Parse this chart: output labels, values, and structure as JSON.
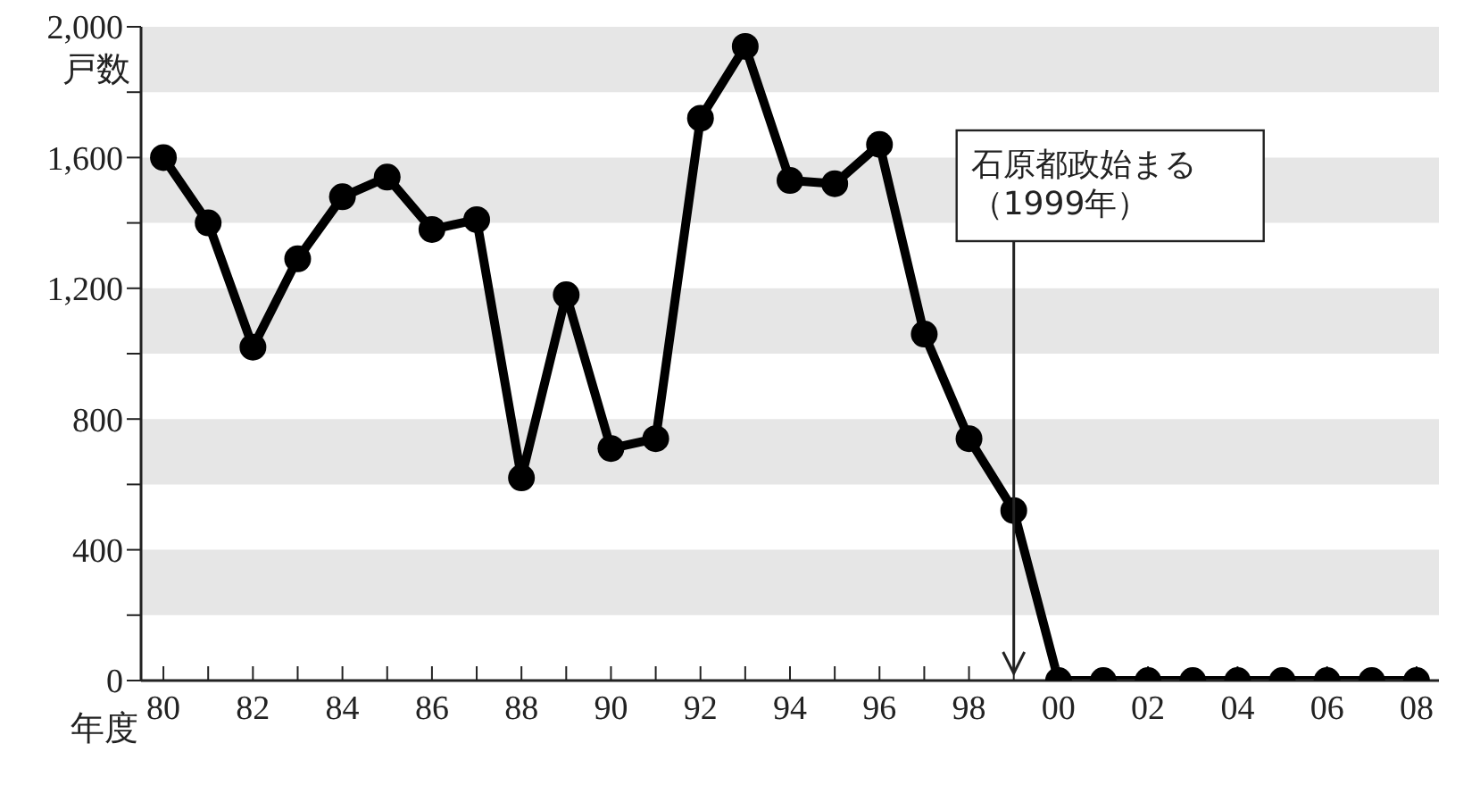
{
  "chart_data": {
    "type": "line",
    "xlabel": "年度",
    "ylabel": "戸数",
    "x": [
      1980,
      1981,
      1982,
      1983,
      1984,
      1985,
      1986,
      1987,
      1988,
      1989,
      1990,
      1991,
      1992,
      1993,
      1994,
      1995,
      1996,
      1997,
      1998,
      1999,
      2000,
      2001,
      2002,
      2003,
      2004,
      2005,
      2006,
      2007,
      2008
    ],
    "series": [
      {
        "color": "#000000",
        "values": [
          1600,
          1400,
          1020,
          1290,
          1480,
          1540,
          1380,
          1410,
          620,
          1180,
          710,
          740,
          1720,
          1940,
          1530,
          1520,
          1640,
          1060,
          740,
          520,
          0,
          0,
          0,
          0,
          0,
          0,
          0,
          0,
          0
        ]
      }
    ],
    "xlim": [
      1979.5,
      2008.5
    ],
    "xticks": [
      {
        "value": 1980,
        "label": "80"
      },
      {
        "value": 1981,
        "label": null
      },
      {
        "value": 1982,
        "label": "82"
      },
      {
        "value": 1983,
        "label": null
      },
      {
        "value": 1984,
        "label": "84"
      },
      {
        "value": 1985,
        "label": null
      },
      {
        "value": 1986,
        "label": "86"
      },
      {
        "value": 1987,
        "label": null
      },
      {
        "value": 1988,
        "label": "88"
      },
      {
        "value": 1989,
        "label": null
      },
      {
        "value": 1990,
        "label": "90"
      },
      {
        "value": 1991,
        "label": null
      },
      {
        "value": 1992,
        "label": "92"
      },
      {
        "value": 1993,
        "label": null
      },
      {
        "value": 1994,
        "label": "94"
      },
      {
        "value": 1995,
        "label": null
      },
      {
        "value": 1996,
        "label": "96"
      },
      {
        "value": 1997,
        "label": null
      },
      {
        "value": 1998,
        "label": "98"
      },
      {
        "value": 1999,
        "label": null
      },
      {
        "value": 2000,
        "label": "00"
      },
      {
        "value": 2002,
        "label": "02"
      },
      {
        "value": 2004,
        "label": "04"
      },
      {
        "value": 2006,
        "label": "06"
      },
      {
        "value": 2008,
        "label": "08"
      }
    ],
    "ylim": [
      0,
      2000
    ],
    "yticks": [
      0,
      {
        "value": 200,
        "label": null
      },
      {
        "value": 400,
        "label": "400"
      },
      {
        "value": 600,
        "label": null
      },
      {
        "value": 800,
        "label": "800"
      },
      {
        "value": 1000,
        "label": null
      },
      {
        "value": 1200,
        "label": "1,200"
      },
      {
        "value": 1400,
        "label": null
      },
      {
        "value": 1600,
        "label": "1,600"
      },
      {
        "value": 1800,
        "label": null
      },
      {
        "value": 2000,
        "label": "2,000"
      }
    ],
    "bands": [
      {
        "axis": "y",
        "from": 200,
        "to": 400,
        "color": "#e6e6e6"
      },
      {
        "axis": "y",
        "from": 600,
        "to": 800,
        "color": "#e6e6e6"
      },
      {
        "axis": "y",
        "from": 1000,
        "to": 1200,
        "color": "#e6e6e6"
      },
      {
        "axis": "y",
        "from": 1400,
        "to": 1600,
        "color": "#e6e6e6"
      },
      {
        "axis": "y",
        "from": 1800,
        "to": 2000,
        "color": "#e6e6e6"
      }
    ],
    "ref_lines": [
      {
        "axis": "x",
        "value": 1999,
        "label": "石原都政始まる（1999年）"
      }
    ],
    "grid": false,
    "legend": false,
    "marker": "circle",
    "line_style": "solid"
  }
}
